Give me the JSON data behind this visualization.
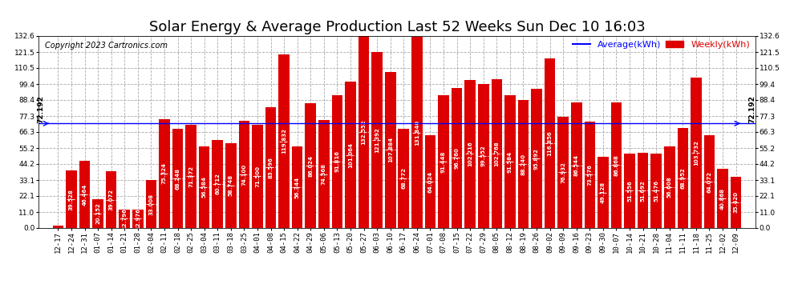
{
  "title": "Solar Energy & Average Production Last 52 Weeks Sun Dec 10 16:03",
  "copyright": "Copyright 2023 Cartronics.com",
  "average_label": "Average(kWh)",
  "weekly_label": "Weekly(kWh)",
  "average_value": 72.192,
  "ylim": [
    0.0,
    132.6
  ],
  "yticks": [
    0.0,
    11.0,
    22.1,
    33.1,
    44.2,
    55.2,
    66.3,
    77.3,
    88.4,
    99.4,
    110.5,
    121.5,
    132.6
  ],
  "bar_color": "#dd0000",
  "avg_line_color": "#0000ff",
  "background_color": "#ffffff",
  "categories": [
    "12-17",
    "12-24",
    "12-31",
    "01-07",
    "01-14",
    "01-21",
    "01-28",
    "02-04",
    "02-11",
    "02-18",
    "02-25",
    "03-04",
    "03-11",
    "03-18",
    "03-25",
    "04-01",
    "04-08",
    "04-15",
    "04-22",
    "04-29",
    "05-06",
    "05-13",
    "05-20",
    "05-27",
    "06-03",
    "06-10",
    "06-17",
    "06-24",
    "07-01",
    "07-08",
    "07-15",
    "07-22",
    "07-29",
    "08-05",
    "08-12",
    "08-19",
    "08-26",
    "09-02",
    "09-09",
    "09-16",
    "09-23",
    "09-30",
    "10-07",
    "10-14",
    "10-21",
    "10-28",
    "11-04",
    "11-11",
    "11-18",
    "11-25",
    "12-02",
    "12-09"
  ],
  "values": [
    1.928,
    39.528,
    46.464,
    20.152,
    39.072,
    12.796,
    12.976,
    33.008,
    75.324,
    68.248,
    71.372,
    56.584,
    60.712,
    58.748,
    74.1,
    71.5,
    83.596,
    119.832,
    56.344,
    86.024,
    74.568,
    91.816,
    101.064,
    132.552,
    121.392,
    107.884,
    68.772,
    131.84,
    64.024,
    91.448,
    96.76,
    102.216,
    99.552,
    102.768,
    91.584,
    88.24,
    95.892,
    116.856,
    76.932,
    86.544,
    73.576,
    49.128,
    86.868,
    51.556,
    51.692,
    51.476,
    56.608,
    68.952,
    103.732,
    64.072,
    40.868,
    35.42
  ],
  "title_fontsize": 13,
  "axis_fontsize": 6.5,
  "copyright_fontsize": 7,
  "legend_fontsize": 8
}
